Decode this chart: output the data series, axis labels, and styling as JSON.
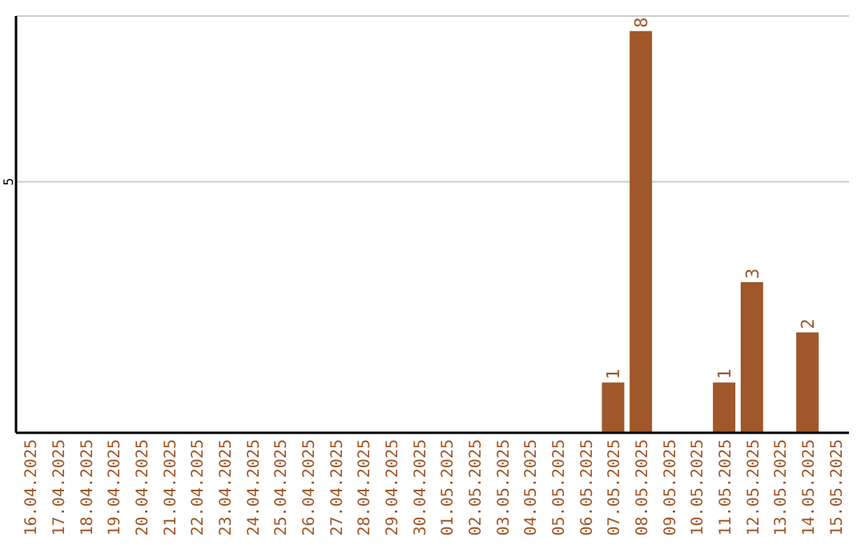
{
  "chart_data": {
    "type": "bar",
    "categories": [
      "16.04.2025",
      "17.04.2025",
      "18.04.2025",
      "19.04.2025",
      "20.04.2025",
      "21.04.2025",
      "22.04.2025",
      "23.04.2025",
      "24.04.2025",
      "25.04.2025",
      "26.04.2025",
      "27.04.2025",
      "28.04.2025",
      "29.04.2025",
      "30.04.2025",
      "01.05.2025",
      "02.05.2025",
      "03.05.2025",
      "04.05.2025",
      "05.05.2025",
      "06.05.2025",
      "07.05.2025",
      "08.05.2025",
      "09.05.2025",
      "10.05.2025",
      "11.05.2025",
      "12.05.2025",
      "13.05.2025",
      "14.05.2025",
      "15.05.2025"
    ],
    "values": [
      null,
      null,
      null,
      null,
      null,
      null,
      null,
      null,
      null,
      null,
      null,
      null,
      null,
      null,
      null,
      null,
      null,
      null,
      null,
      null,
      null,
      1,
      8,
      null,
      null,
      1,
      3,
      null,
      2,
      null
    ],
    "color": "#a0582a",
    "ylim": [
      0,
      8.3
    ],
    "yticks": [
      5
    ],
    "grid": "y",
    "data_labels": true
  }
}
